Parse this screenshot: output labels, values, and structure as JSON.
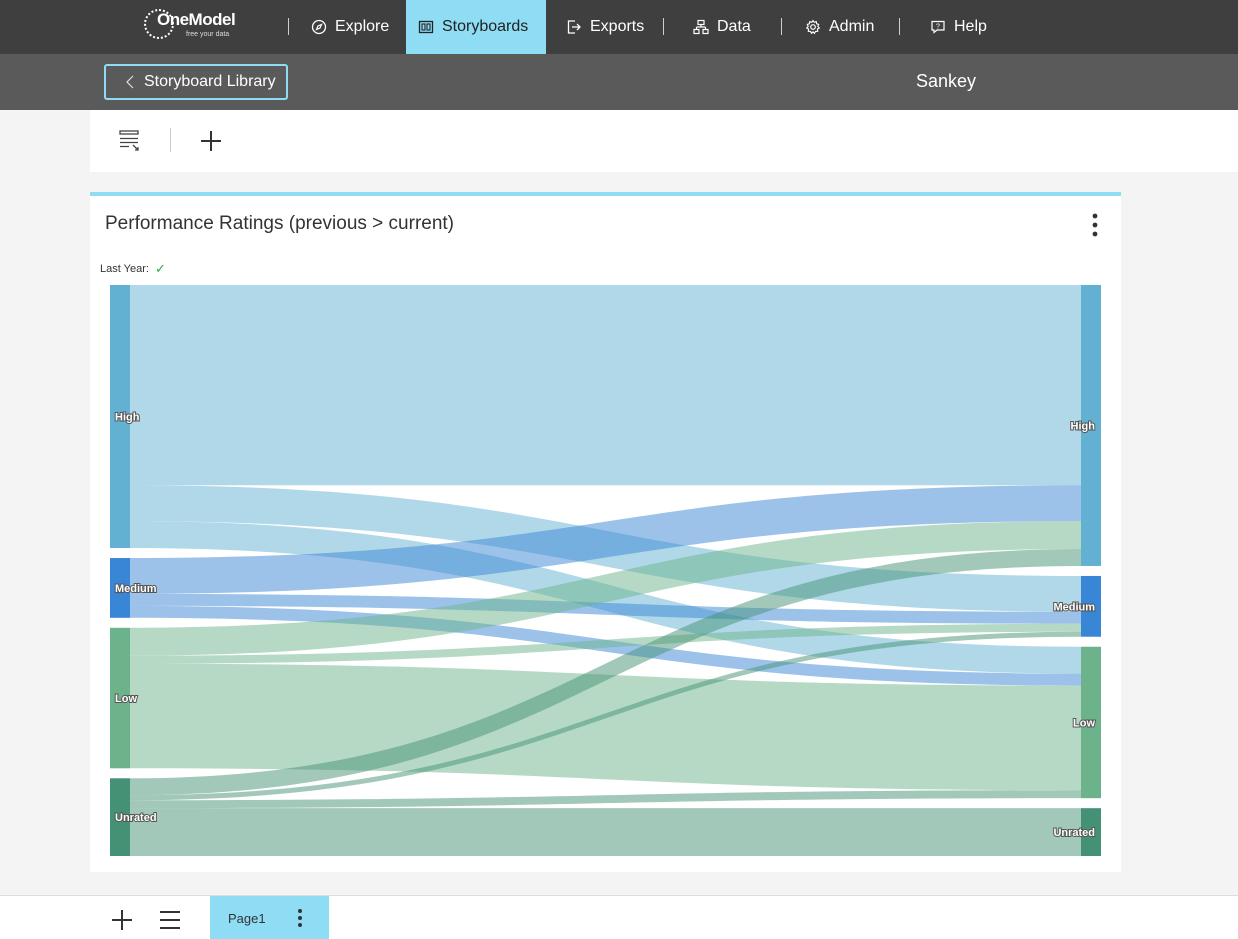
{
  "topnav": {
    "logo": {
      "name": "OneModel",
      "tagline": "free your data"
    },
    "items": [
      {
        "label": "Explore",
        "icon": "compass-icon",
        "active": false
      },
      {
        "label": "Storyboards",
        "icon": "storyboard-icon",
        "active": true
      },
      {
        "label": "Exports",
        "icon": "export-icon",
        "active": false
      },
      {
        "label": "Data",
        "icon": "data-hierarchy-icon",
        "active": false
      },
      {
        "label": "Admin",
        "icon": "gear-icon",
        "active": false
      },
      {
        "label": "Help",
        "icon": "help-chat-icon",
        "active": false
      }
    ]
  },
  "subnav": {
    "back_label": "Storyboard Library",
    "title": "Sankey"
  },
  "toolbar": {
    "icons": [
      "filter-list-icon",
      "plus-icon"
    ]
  },
  "card": {
    "title": "Performance Ratings (previous > current)",
    "filter": {
      "label": "Last Year:",
      "icon": "check-icon"
    }
  },
  "chart_data": {
    "type": "sankey",
    "title": "Performance Ratings (previous > current)",
    "nodes_left": [
      {
        "name": "High",
        "color": "#62b1d2"
      },
      {
        "name": "Medium",
        "color": "#3a86d6"
      },
      {
        "name": "Low",
        "color": "#6cb38c"
      },
      {
        "name": "Unrated",
        "color": "#459175"
      }
    ],
    "nodes_right": [
      {
        "name": "High",
        "color": "#62b1d2"
      },
      {
        "name": "Medium",
        "color": "#3a86d6"
      },
      {
        "name": "Low",
        "color": "#6cb38c"
      },
      {
        "name": "Unrated",
        "color": "#459175"
      }
    ],
    "links": [
      {
        "source": "High",
        "target": "High",
        "value": 201
      },
      {
        "source": "High",
        "target": "Medium",
        "value": 36
      },
      {
        "source": "High",
        "target": "Low",
        "value": 27
      },
      {
        "source": "Medium",
        "target": "High",
        "value": 36
      },
      {
        "source": "Medium",
        "target": "Medium",
        "value": 12
      },
      {
        "source": "Medium",
        "target": "Low",
        "value": 12
      },
      {
        "source": "Low",
        "target": "High",
        "value": 28
      },
      {
        "source": "Low",
        "target": "Medium",
        "value": 8
      },
      {
        "source": "Low",
        "target": "Low",
        "value": 105
      },
      {
        "source": "Unrated",
        "target": "High",
        "value": 17
      },
      {
        "source": "Unrated",
        "target": "Medium",
        "value": 5
      },
      {
        "source": "Unrated",
        "target": "Low",
        "value": 8
      },
      {
        "source": "Unrated",
        "target": "Unrated",
        "value": 48
      }
    ]
  },
  "bottombar": {
    "page_label": "Page1",
    "icons": [
      "add-page-icon",
      "page-list-icon"
    ]
  }
}
